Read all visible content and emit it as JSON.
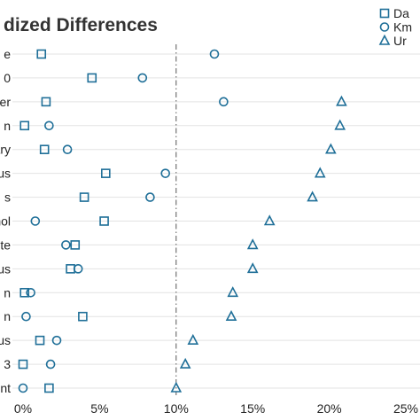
{
  "chart_data": {
    "type": "scatter",
    "title": "dized Differences",
    "x_ticks": [
      "0%",
      "5%",
      "10%",
      "15%",
      "20%",
      "25%"
    ],
    "x_tick_values": [
      0,
      5,
      10,
      15,
      20,
      25
    ],
    "xlim": [
      -0.7,
      26.5
    ],
    "reference_line_x": 10,
    "categories": [
      "e",
      "0",
      "er",
      "n",
      "ary",
      "us",
      "s",
      "hol",
      "te",
      "us",
      "n",
      "n",
      "us",
      "3",
      "nt"
    ],
    "series": [
      {
        "name": "Da",
        "marker": "square",
        "values": [
          1.2,
          4.5,
          1.5,
          0.1,
          1.4,
          5.4,
          4.0,
          5.3,
          3.4,
          3.1,
          0.1,
          3.9,
          1.1,
          0.0,
          1.7
        ]
      },
      {
        "name": "Km",
        "marker": "circle",
        "values": [
          12.5,
          7.8,
          13.1,
          1.7,
          2.9,
          9.3,
          8.3,
          0.8,
          2.8,
          3.6,
          0.5,
          0.2,
          2.2,
          1.8,
          0.0
        ]
      },
      {
        "name": "Ur",
        "marker": "triangle",
        "values": [
          null,
          null,
          20.8,
          20.7,
          20.1,
          19.4,
          18.9,
          16.1,
          15.0,
          15.0,
          13.7,
          13.6,
          11.1,
          10.6,
          10.0
        ]
      }
    ],
    "legend_position": "top-right",
    "colors": {
      "marker": "#1f6f98",
      "grid": "#e3e3e3",
      "reference": "#555555"
    }
  }
}
